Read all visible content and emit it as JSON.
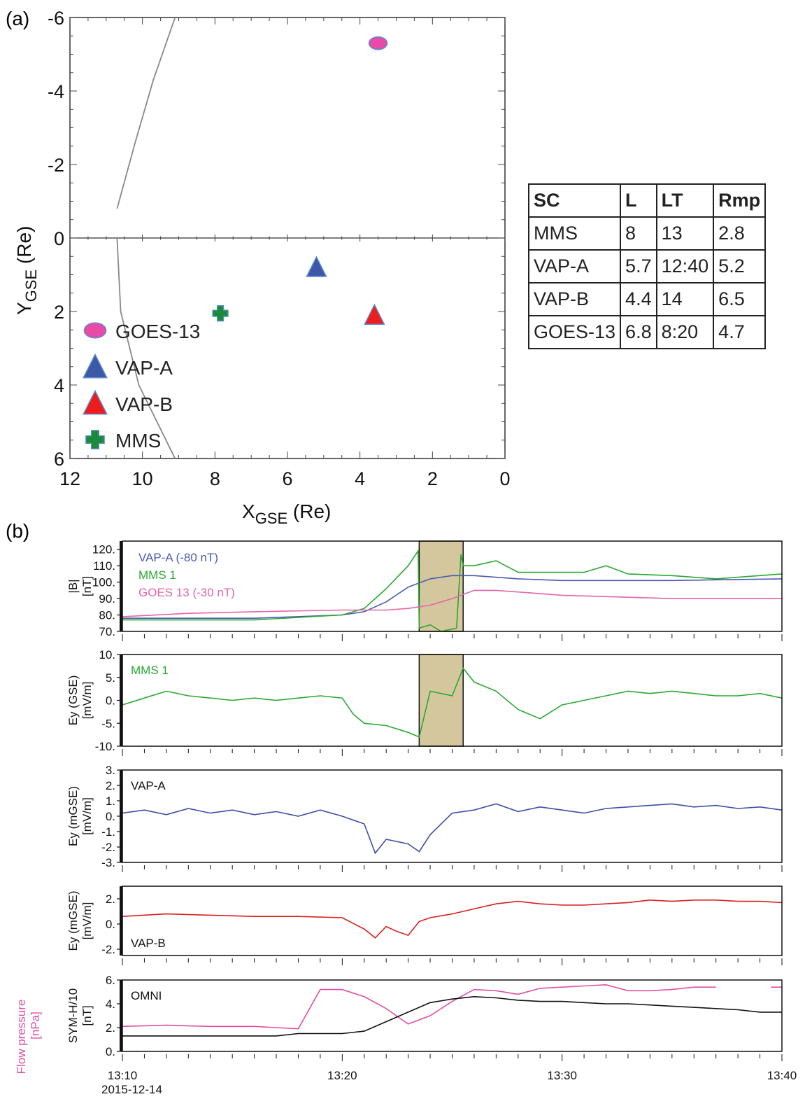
{
  "panel_labels": {
    "a": "(a)",
    "b": "(b)"
  },
  "table": {
    "headers": [
      "SC",
      "L",
      "LT",
      "Rmp"
    ],
    "rows": [
      [
        "MMS",
        "8",
        "13",
        "2.8"
      ],
      [
        "VAP-A",
        "5.7",
        "12:40",
        "5.2"
      ],
      [
        "VAP-B",
        "4.4",
        "14",
        "6.5"
      ],
      [
        "GOES-13",
        "6.8",
        "8:20",
        "4.7"
      ]
    ]
  },
  "chart_data": [
    {
      "type": "scatter",
      "xlabel": "X",
      "xlabel_sub": "GSE",
      "xlabel_unit": "(Re)",
      "ylabel": "Y",
      "ylabel_sub": "GSE",
      "ylabel_unit": "(Re)",
      "xlim": [
        12,
        0
      ],
      "ylim": [
        -6,
        6
      ],
      "xticks": [
        "12",
        "10",
        "8",
        "6",
        "4",
        "2",
        "0"
      ],
      "yticks": [
        "-6",
        "-4",
        "-2",
        "0",
        "2",
        "4",
        "6"
      ],
      "legend_placement": "bottom-left",
      "series": [
        {
          "name": "GOES-13",
          "marker": "ellipse",
          "color": "#e94aa6",
          "x": 3.5,
          "y": -5.3
        },
        {
          "name": "VAP-A",
          "marker": "triangle",
          "color": "#3e58a8",
          "x": 5.2,
          "y": 0.8
        },
        {
          "name": "VAP-B",
          "marker": "triangle",
          "color": "#ee1c1c",
          "x": 3.6,
          "y": 2.1
        },
        {
          "name": "MMS",
          "marker": "cross",
          "color": "#1b8a3a",
          "x": 7.85,
          "y": 2.05
        }
      ],
      "curves": [
        {
          "points": [
            [
              10.7,
              -0.8
            ],
            [
              10.2,
              -2.6
            ],
            [
              9.7,
              -4.3
            ],
            [
              9.1,
              -6.0
            ]
          ]
        },
        {
          "points": [
            [
              10.7,
              0.0
            ],
            [
              10.6,
              2.0
            ],
            [
              10.1,
              4.0
            ],
            [
              9.1,
              6.0
            ]
          ]
        }
      ]
    },
    {
      "type": "line",
      "x_tick_labels": [
        "13:10",
        "13:20",
        "13:30",
        "13:40"
      ],
      "x_date_label": "2015-12-14",
      "xlim": [
        "13:10",
        "13:40"
      ],
      "shaded_interval": [
        "13:23.5",
        "13:25.5"
      ],
      "panels": [
        {
          "ylabel": "|B|",
          "yunit": "[nT]",
          "ylim": [
            70,
            125
          ],
          "yticks": [
            "70.",
            "80.",
            "90.",
            "100.",
            "110.",
            "120."
          ],
          "series": [
            {
              "name": "VAP-A (-80 nT)",
              "color": "#4a5ab0",
              "x": [
                0,
                3,
                6,
                10,
                11,
                12,
                13,
                14,
                15,
                16,
                18,
                20,
                22,
                25,
                30
              ],
              "y": [
                78,
                78,
                78,
                80,
                82,
                88,
                97,
                102,
                104,
                104,
                102,
                101,
                101,
                101,
                102
              ]
            },
            {
              "name": "MMS 1",
              "color": "#2aa832",
              "x": [
                0,
                3,
                6,
                10,
                11,
                12,
                13,
                13.45,
                13.5,
                14,
                14.5,
                15.2,
                15.4,
                15.5,
                16,
                17,
                18,
                19,
                21,
                22,
                23,
                25,
                27,
                30
              ],
              "y": [
                77,
                77,
                77,
                80,
                84,
                96,
                110,
                119,
                72,
                74,
                70,
                72,
                117,
                110,
                110,
                113,
                106,
                106,
                106,
                110,
                105,
                104,
                102,
                105
              ]
            },
            {
              "name": "GOES 13 (-30 nT)",
              "color": "#e565a6",
              "x": [
                0,
                3,
                6,
                10,
                11,
                12,
                13,
                14,
                15,
                16,
                17,
                18,
                20,
                25,
                30
              ],
              "y": [
                79,
                81,
                82,
                83,
                83,
                83,
                84,
                86,
                90,
                95,
                95,
                94,
                92,
                90,
                90
              ]
            }
          ]
        },
        {
          "ylabel": "Ey (GSE)",
          "yunit": "[mV/m]",
          "ylim": [
            -10,
            10
          ],
          "yticks": [
            "-10.",
            "-5.",
            "0.",
            "5.",
            "10."
          ],
          "annotation": "MMS 1",
          "series": [
            {
              "name": "MMS 1",
              "color": "#2aa832",
              "x": [
                0,
                1,
                2,
                3,
                4,
                5,
                6,
                7,
                8,
                9,
                10,
                10.5,
                11,
                12,
                13,
                13.5,
                14,
                15,
                15.5,
                16,
                17,
                18,
                19,
                20,
                21,
                22,
                23,
                24,
                25,
                26,
                27,
                28,
                29,
                30
              ],
              "y": [
                -1,
                0.5,
                2,
                1,
                0.5,
                0,
                0.5,
                0,
                0.5,
                1,
                0.5,
                -3,
                -5,
                -5.5,
                -7,
                -8,
                2,
                1,
                7,
                4,
                2,
                -2,
                -4,
                -1,
                0,
                1,
                2,
                1.5,
                2,
                1.5,
                1,
                1,
                1.5,
                0.5
              ]
            }
          ]
        },
        {
          "ylabel": "Ey (mGSE)",
          "yunit": "[mV/m]",
          "ylim": [
            -3,
            3
          ],
          "yticks": [
            "-3.",
            "-2.",
            "-1.",
            "0.",
            "1.",
            "2.",
            "3."
          ],
          "annotation": "VAP-A",
          "series": [
            {
              "name": "VAP-A",
              "color": "#3e4ea8",
              "x": [
                0,
                1,
                2,
                3,
                4,
                5,
                6,
                7,
                8,
                9,
                10,
                11,
                11.5,
                12,
                13,
                13.5,
                14,
                15,
                16,
                17,
                18,
                19,
                20,
                21,
                22,
                23,
                24,
                25,
                26,
                27,
                28,
                29,
                30
              ],
              "y": [
                0.2,
                0.4,
                0.1,
                0.5,
                0.2,
                0.4,
                0.1,
                0.3,
                0,
                0.4,
                0,
                -0.5,
                -2.4,
                -1.5,
                -1.8,
                -2.3,
                -1.2,
                0.2,
                0.4,
                0.8,
                0.3,
                0.6,
                0.4,
                0.2,
                0.5,
                0.6,
                0.7,
                0.8,
                0.6,
                0.7,
                0.5,
                0.6,
                0.4
              ]
            }
          ]
        },
        {
          "ylabel": "Ey (mGSE)",
          "yunit": "[mV/m]",
          "ylim": [
            -2.5,
            3
          ],
          "yticks": [
            "-2.",
            "0.",
            "2."
          ],
          "annotation": "VAP-B",
          "series": [
            {
              "name": "VAP-B",
              "color": "#d91e1e",
              "x": [
                0,
                2,
                4,
                6,
                8,
                10,
                11,
                11.5,
                12,
                12.5,
                13,
                13.5,
                14,
                15,
                16,
                17,
                18,
                19,
                20,
                21,
                22,
                23,
                24,
                25,
                26,
                27,
                28,
                29,
                30
              ],
              "y": [
                0.6,
                0.8,
                0.7,
                0.6,
                0.6,
                0.5,
                -0.4,
                -1.1,
                -0.2,
                -0.6,
                -0.9,
                0.2,
                0.5,
                0.8,
                1.2,
                1.6,
                1.8,
                1.6,
                1.5,
                1.5,
                1.6,
                1.7,
                1.9,
                1.8,
                1.9,
                1.9,
                1.8,
                1.8,
                1.7
              ]
            }
          ]
        },
        {
          "ylabel": "SYM-H/10",
          "yunit": "[nT]",
          "ylabel2": "Flow pressure",
          "yunit2": "[nPa]",
          "ylabel2_color": "#e04fa3",
          "ylim": [
            0,
            6
          ],
          "yticks": [
            "0.",
            "2.",
            "4.",
            "6."
          ],
          "annotation": "OMNI",
          "series": [
            {
              "name": "Flow pressure",
              "color": "#e04fa3",
              "x": [
                0,
                2,
                4,
                6,
                7,
                8,
                9,
                10,
                11,
                12,
                13,
                14,
                15,
                16,
                17,
                18,
                19,
                20,
                21,
                22,
                23,
                24,
                25,
                26,
                27
              ],
              "y": [
                2.1,
                2.2,
                2.1,
                2.1,
                2.0,
                1.9,
                5.2,
                5.2,
                4.6,
                3.6,
                2.3,
                3.0,
                4.2,
                5.2,
                5.1,
                4.8,
                5.3,
                5.4,
                5.5,
                5.6,
                5.1,
                5.1,
                5.2,
                5.4,
                5.4
              ],
              "extra_segment": {
                "x": [
                  29.5,
                  30
                ],
                "y": [
                  5.4,
                  5.4
                ]
              }
            },
            {
              "name": "SYM-H/10",
              "color": "#111111",
              "x": [
                0,
                3,
                6,
                7,
                8,
                9,
                10,
                11,
                12,
                13,
                14,
                15,
                16,
                17,
                18,
                19,
                20,
                21,
                22,
                23,
                24,
                25,
                26,
                27,
                28,
                29,
                30
              ],
              "y": [
                1.3,
                1.3,
                1.3,
                1.3,
                1.5,
                1.5,
                1.5,
                1.7,
                2.5,
                3.3,
                4.1,
                4.4,
                4.6,
                4.5,
                4.3,
                4.2,
                4.2,
                4.1,
                4.0,
                4.0,
                3.9,
                3.8,
                3.7,
                3.6,
                3.5,
                3.3,
                3.3
              ]
            }
          ]
        }
      ]
    }
  ]
}
